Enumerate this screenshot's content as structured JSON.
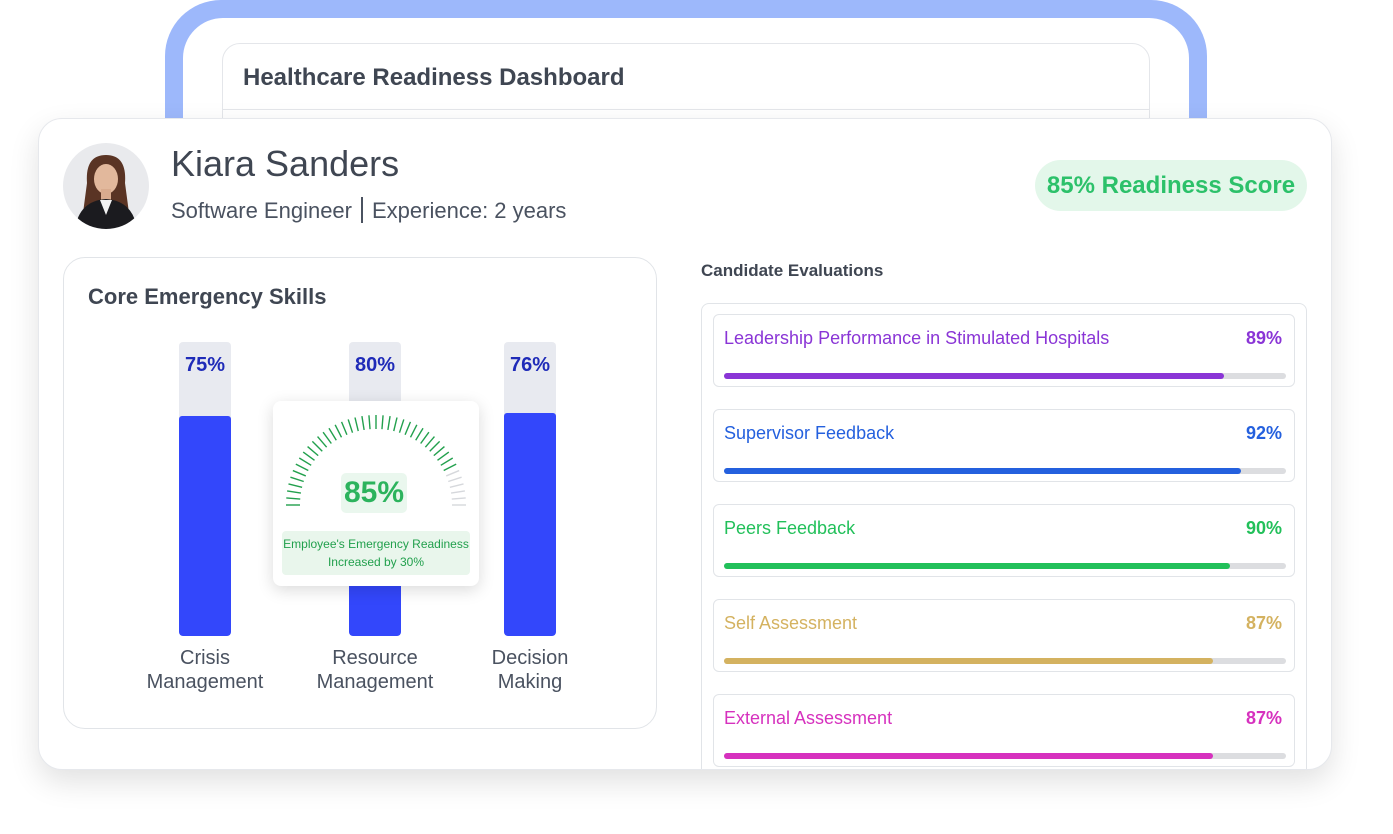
{
  "header": {
    "title": "Healthcare Readiness Dashboard"
  },
  "profile": {
    "name": "Kiara Sanders",
    "role": "Software Engineer",
    "experience": "Experience: 2 years",
    "score": "85% Readiness Score"
  },
  "skills": {
    "title": "Core Emergency Skills",
    "bar_color": "#3347fb",
    "track_color": "#e8eaf0",
    "items": [
      {
        "name": "Crisis Management",
        "value": 75,
        "label": "75%"
      },
      {
        "name": "Resource Management",
        "value": 80,
        "label": "80%"
      },
      {
        "name": "Decision Making",
        "value": 76,
        "label": "76%"
      }
    ]
  },
  "gauge": {
    "value": 85,
    "label": "85%",
    "caption": "Employee's Emergency Readiness Increased by 30%",
    "color": "#22a04d"
  },
  "evaluations": {
    "title": "Candidate Evaluations",
    "items": [
      {
        "name": "Leadership Performance in Stimulated Hospitals",
        "value": 89,
        "label": "89%",
        "color": "#8a35d6"
      },
      {
        "name": "Supervisor Feedback",
        "value": 92,
        "label": "92%",
        "color": "#2460de"
      },
      {
        "name": "Peers Feedback",
        "value": 90,
        "label": "90%",
        "color": "#22c05a"
      },
      {
        "name": "Self Assessment",
        "value": 87,
        "label": "87%",
        "color": "#d4b260"
      },
      {
        "name": "External Assessment",
        "value": 87,
        "label": "87%",
        "color": "#d631be"
      }
    ]
  }
}
